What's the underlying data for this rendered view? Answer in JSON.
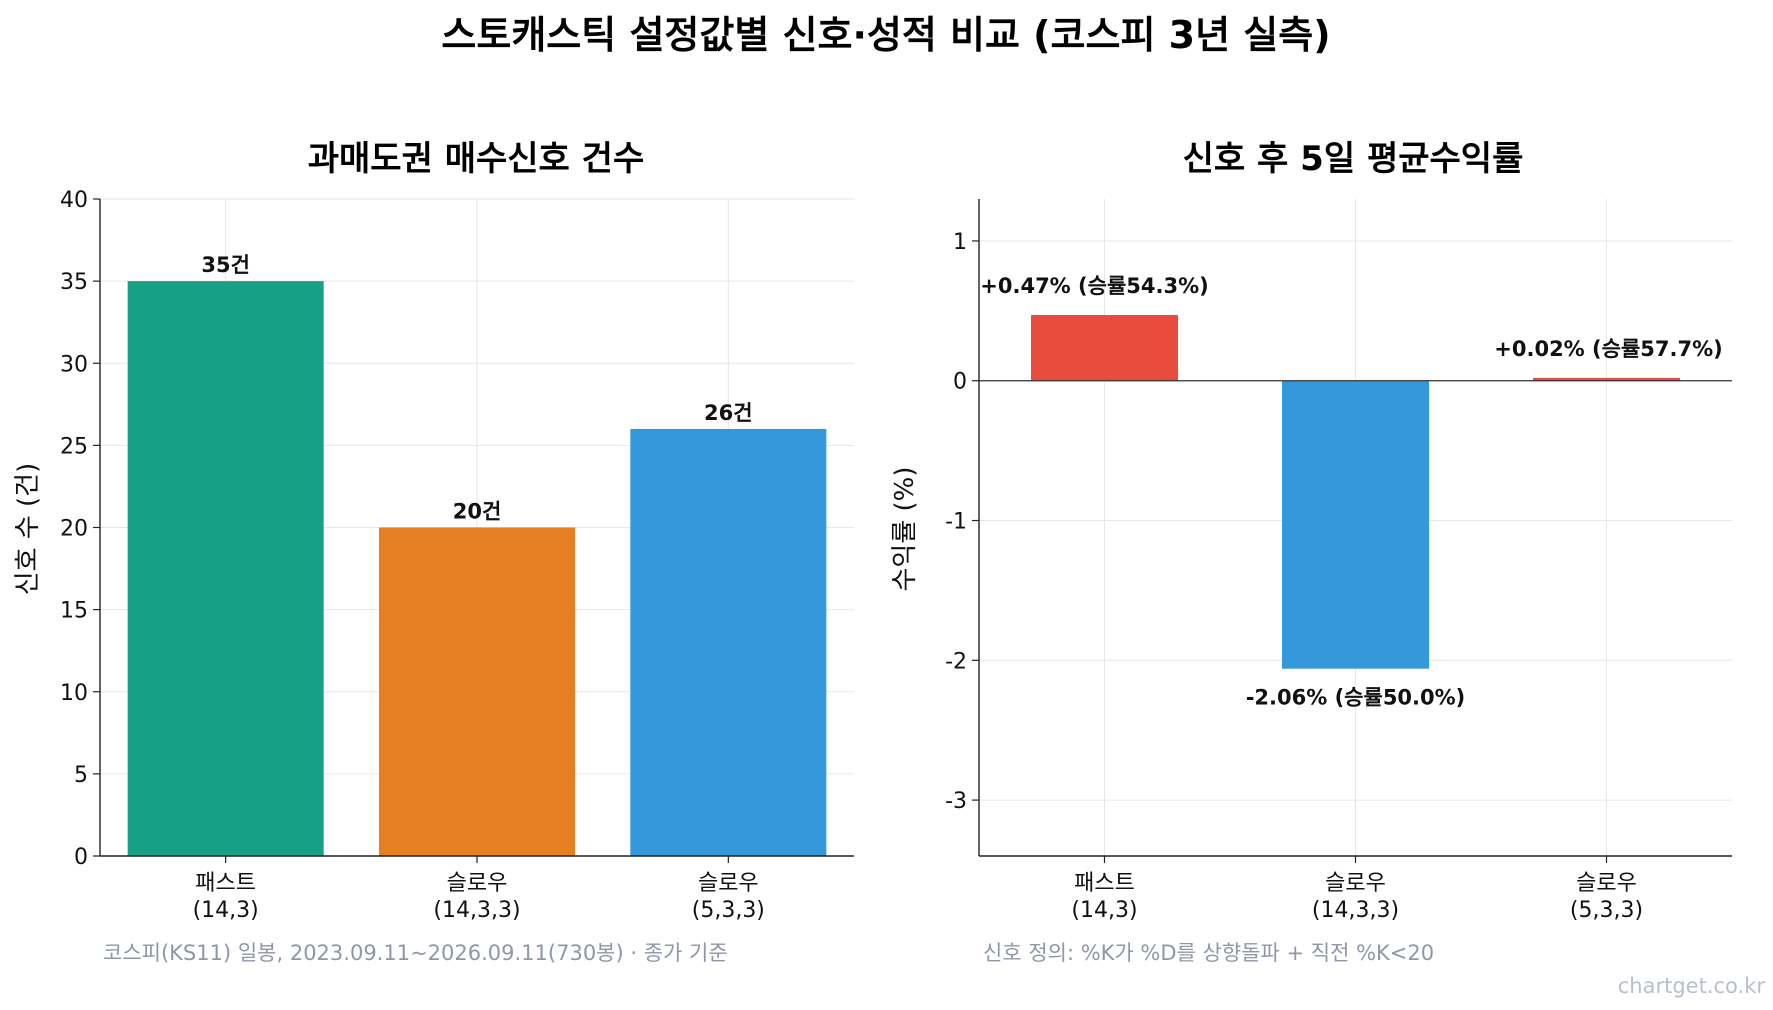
{
  "figure": {
    "title": "스토캐스틱 설정값별 신호·성적 비교 (코스피 3년 실측)",
    "note_left": "코스피(KS11) 일봉, 2023.09.11~2026.09.11(730봉) · 종가 기준",
    "note_right": "신호 정의: %K가 %D를 상향돌파 + 직전 %K<20",
    "watermark": "chartget.co.kr"
  },
  "chart_data": [
    {
      "type": "bar",
      "title": "과매도권 매수신호 건수",
      "ylabel": "신호 수 (건)",
      "xlabel": "",
      "ylim": [
        0,
        40
      ],
      "yticks": [
        0,
        5,
        10,
        15,
        20,
        25,
        30,
        35,
        40
      ],
      "categories": [
        [
          "패스트",
          "(14,3)"
        ],
        [
          "슬로우",
          "(14,3,3)"
        ],
        [
          "슬로우",
          "(5,3,3)"
        ]
      ],
      "values": [
        35,
        20,
        26
      ],
      "value_labels": [
        "35건",
        "20건",
        "26건"
      ],
      "colors": [
        "#16a085",
        "#e67e22",
        "#3498db"
      ],
      "grid": true
    },
    {
      "type": "bar",
      "title": "신호 후 5일 평균수익률",
      "ylabel": "수익률 (%)",
      "xlabel": "",
      "ylim": [
        -3.4,
        1.3
      ],
      "yticks": [
        -3,
        -2,
        -1,
        0,
        1
      ],
      "categories": [
        [
          "패스트",
          "(14,3)"
        ],
        [
          "슬로우",
          "(14,3,3)"
        ],
        [
          "슬로우",
          "(5,3,3)"
        ]
      ],
      "values": [
        0.47,
        -2.06,
        0.02
      ],
      "win_rates": [
        54.3,
        50.0,
        57.7
      ],
      "value_labels": [
        "+0.47% (승률54.3%)",
        "-2.06% (승률50.0%)",
        "+0.02% (승률57.7%)"
      ],
      "colors": [
        "#e74c3c",
        "#3498db",
        "#e74c3c"
      ],
      "grid": true
    }
  ]
}
